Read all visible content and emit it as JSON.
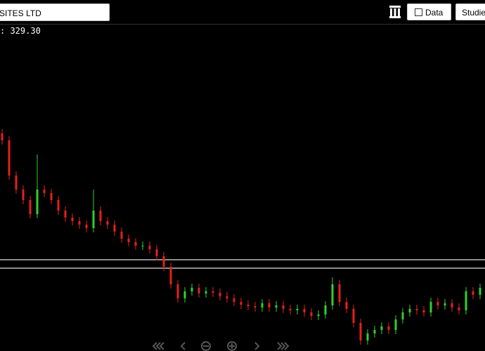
{
  "toolbar": {
    "symbol": "SITES LTD",
    "data_button": "Data",
    "studies_button": "Studie"
  },
  "chart_data": {
    "type": "candlestick",
    "price_label": ": 329.30",
    "open": [
      310,
      300,
      250,
      230,
      215,
      195,
      230,
      225,
      215,
      200,
      190,
      185,
      180,
      175,
      200,
      185,
      180,
      170,
      160,
      155,
      150,
      150,
      145,
      135,
      120,
      95,
      75,
      85,
      90,
      82,
      85,
      83,
      78,
      75,
      70,
      66,
      64,
      62,
      68,
      62,
      65,
      60,
      58,
      60,
      55,
      50,
      52,
      65,
      95,
      70,
      60,
      40,
      15,
      25,
      30,
      35,
      30,
      45,
      55,
      60,
      58,
      55,
      70,
      65,
      68,
      62,
      58,
      85,
      80
    ],
    "high": [
      316,
      306,
      256,
      236,
      221,
      280,
      236,
      231,
      221,
      206,
      196,
      191,
      186,
      230,
      206,
      191,
      186,
      176,
      166,
      161,
      156,
      156,
      151,
      141,
      126,
      101,
      91,
      96,
      96,
      91,
      91,
      89,
      84,
      81,
      76,
      72,
      70,
      74,
      74,
      71,
      71,
      66,
      66,
      66,
      61,
      58,
      71,
      105,
      101,
      76,
      66,
      46,
      31,
      36,
      41,
      41,
      51,
      61,
      66,
      66,
      64,
      76,
      76,
      74,
      74,
      68,
      91,
      91,
      96
    ],
    "low": [
      294,
      244,
      224,
      209,
      189,
      189,
      219,
      209,
      194,
      184,
      179,
      174,
      169,
      169,
      179,
      174,
      164,
      154,
      149,
      144,
      144,
      139,
      129,
      114,
      89,
      69,
      69,
      79,
      76,
      76,
      77,
      72,
      69,
      64,
      60,
      58,
      56,
      56,
      56,
      56,
      54,
      52,
      52,
      49,
      44,
      44,
      46,
      59,
      64,
      54,
      34,
      9,
      9,
      19,
      24,
      24,
      24,
      39,
      49,
      52,
      49,
      49,
      59,
      59,
      56,
      52,
      52,
      74,
      74
    ],
    "close": [
      300,
      250,
      230,
      215,
      195,
      230,
      225,
      215,
      200,
      190,
      185,
      180,
      175,
      200,
      185,
      180,
      170,
      160,
      155,
      150,
      150,
      145,
      135,
      120,
      95,
      75,
      85,
      90,
      82,
      85,
      83,
      78,
      75,
      70,
      66,
      64,
      62,
      68,
      62,
      65,
      60,
      58,
      60,
      55,
      50,
      52,
      65,
      95,
      70,
      60,
      40,
      15,
      25,
      30,
      35,
      30,
      45,
      55,
      60,
      58,
      55,
      70,
      65,
      68,
      62,
      58,
      85,
      80,
      90
    ],
    "up_color": "#2fd12f",
    "down_color": "#e3211c",
    "hlines": [
      130,
      118
    ],
    "ylim": [
      0,
      465
    ]
  }
}
